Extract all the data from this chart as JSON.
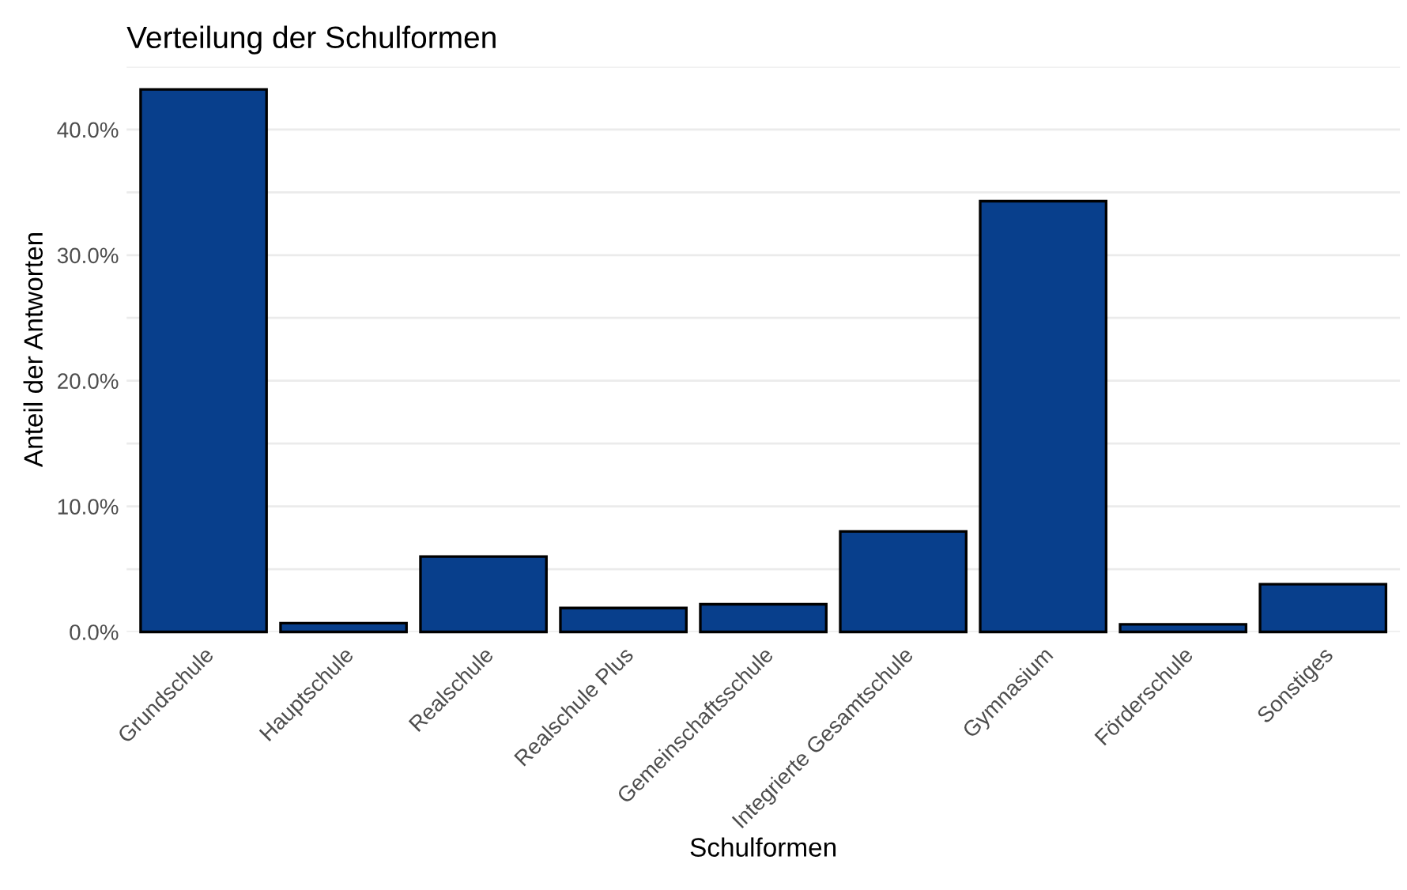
{
  "chart_data": {
    "type": "bar",
    "title": "Verteilung der Schulformen",
    "xlabel": "Schulformen",
    "ylabel": "Anteil der Antworten",
    "categories": [
      "Grundschule",
      "Hauptschule",
      "Realschule",
      "Realschule Plus",
      "Gemeinschaftsschule",
      "Integrierte Gesamtschule",
      "Gymnasium",
      "Förderschule",
      "Sonstiges"
    ],
    "values": [
      43.2,
      0.7,
      6.0,
      1.9,
      2.2,
      8.0,
      34.3,
      0.6,
      3.8
    ],
    "color": "#083f8c",
    "ylim": [
      0,
      45
    ],
    "yticks": [
      {
        "value": 0,
        "label": "0.0%"
      },
      {
        "value": 5,
        "label": null
      },
      {
        "value": 10,
        "label": "10.0%"
      },
      {
        "value": 15,
        "label": null
      },
      {
        "value": 20,
        "label": "20.0%"
      },
      {
        "value": 25,
        "label": null
      },
      {
        "value": 30,
        "label": "30.0%"
      },
      {
        "value": 35,
        "label": null
      },
      {
        "value": 40,
        "label": "40.0%"
      },
      {
        "value": 45,
        "label": null
      }
    ],
    "grid": "y"
  }
}
